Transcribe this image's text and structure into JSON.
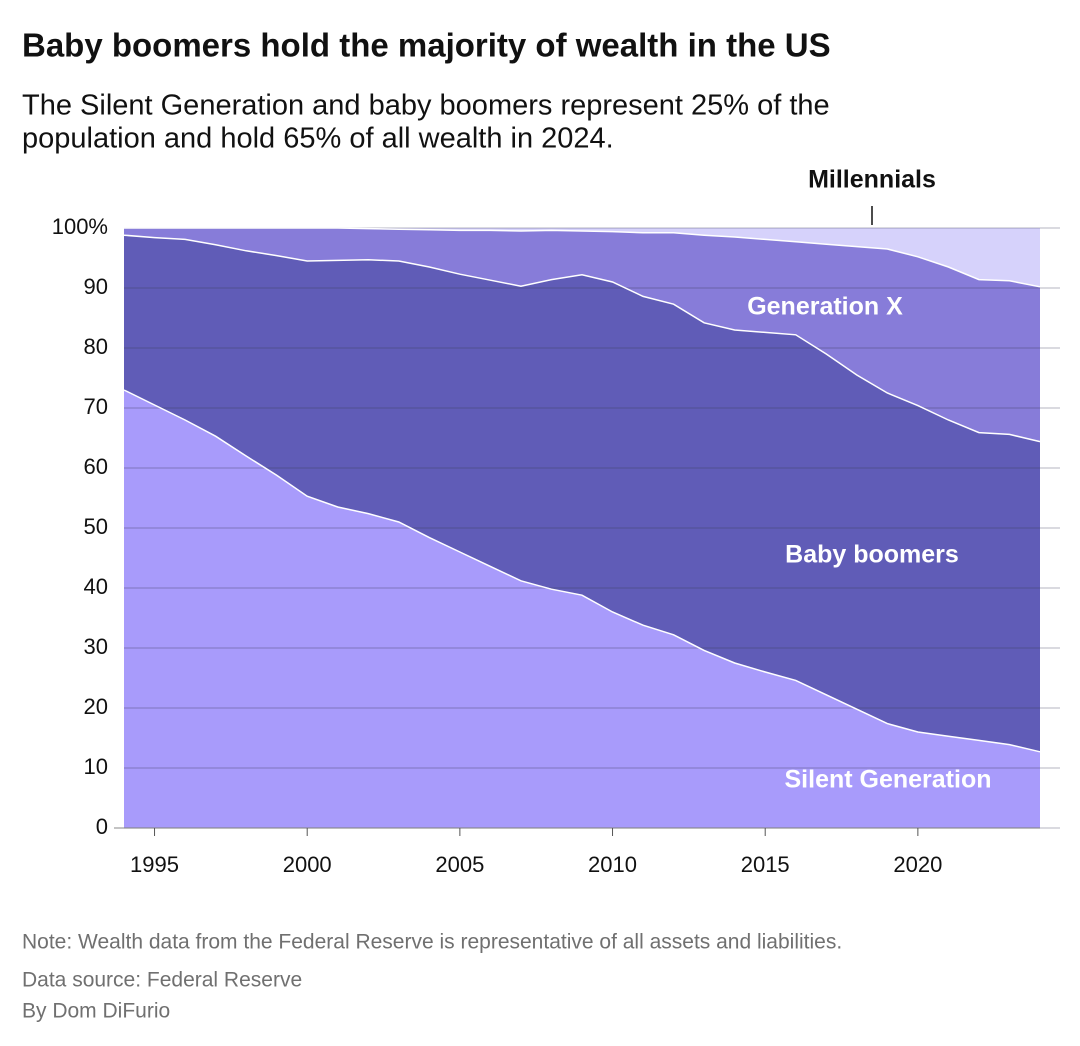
{
  "chart_data": {
    "type": "stacked-area",
    "title": "Baby boomers hold the majority of wealth in the US",
    "subtitle": [
      "The Silent Generation and baby boomers represent 25% of the",
      "population and hold 65% of all wealth in 2024."
    ],
    "note": "Note: Wealth data from the Federal Reserve is representative of all assets and liabilities.",
    "source": "Data source: Federal Reserve",
    "byline": "By Dom DiFurio",
    "x": [
      1994,
      1995,
      1996,
      1997,
      1998,
      1999,
      2000,
      2001,
      2002,
      2003,
      2004,
      2005,
      2006,
      2007,
      2008,
      2009,
      2010,
      2011,
      2012,
      2013,
      2014,
      2015,
      2016,
      2017,
      2018,
      2019,
      2020,
      2021,
      2022,
      2023,
      2024
    ],
    "xlim": [
      1994,
      2024
    ],
    "xticks": [
      1995,
      2000,
      2005,
      2010,
      2015,
      2020
    ],
    "ylim": [
      0,
      100
    ],
    "yticks": [
      0,
      10,
      20,
      30,
      40,
      50,
      60,
      70,
      80,
      90,
      {
        "value": 100,
        "label": "100%"
      }
    ],
    "grid": true,
    "series": [
      {
        "name": "Silent Generation",
        "color": "#a89bfb",
        "values": [
          73,
          70.5,
          68,
          65.3,
          62,
          58.8,
          55.3,
          53.5,
          52.4,
          51,
          48.4,
          46,
          43.6,
          41.2,
          39.8,
          38.8,
          36,
          33.8,
          32.2,
          29.6,
          27.5,
          26,
          24.6,
          22.2,
          19.8,
          17.4,
          16,
          15.3,
          14.6,
          13.9,
          12.7
        ]
      },
      {
        "name": "Baby boomers",
        "color": "#605cb7",
        "values": [
          25.8,
          27.9,
          30.1,
          31.9,
          34.2,
          36.6,
          39.2,
          41.1,
          42.3,
          43.5,
          45.1,
          46.3,
          47.7,
          49.1,
          51.6,
          53.4,
          55,
          54.8,
          55.1,
          54.6,
          55.5,
          56.6,
          57.6,
          56.8,
          55.7,
          55.1,
          54.4,
          52.7,
          51.3,
          51.7,
          51.7
        ]
      },
      {
        "name": "Generation X",
        "color": "#877cd9",
        "values": [
          1.2,
          1.6,
          1.9,
          2.8,
          3.8,
          4.6,
          5.5,
          5.4,
          5.2,
          5.3,
          6.2,
          7.3,
          8.3,
          9.2,
          8.2,
          7.3,
          8.4,
          10.6,
          11.9,
          14.6,
          15.5,
          15.5,
          15.5,
          18.3,
          21.4,
          24,
          24.8,
          25.5,
          25.5,
          25.6,
          25.8
        ]
      },
      {
        "name": "Millennials",
        "color": "#d6d2fb",
        "values": [
          0,
          0,
          0,
          0,
          0,
          0,
          0,
          0,
          0.1,
          0.2,
          0.3,
          0.4,
          0.4,
          0.5,
          0.4,
          0.5,
          0.6,
          0.8,
          0.8,
          1.2,
          1.5,
          1.9,
          2.3,
          2.7,
          3.1,
          3.5,
          4.8,
          6.5,
          8.6,
          8.8,
          9.8
        ]
      }
    ]
  }
}
